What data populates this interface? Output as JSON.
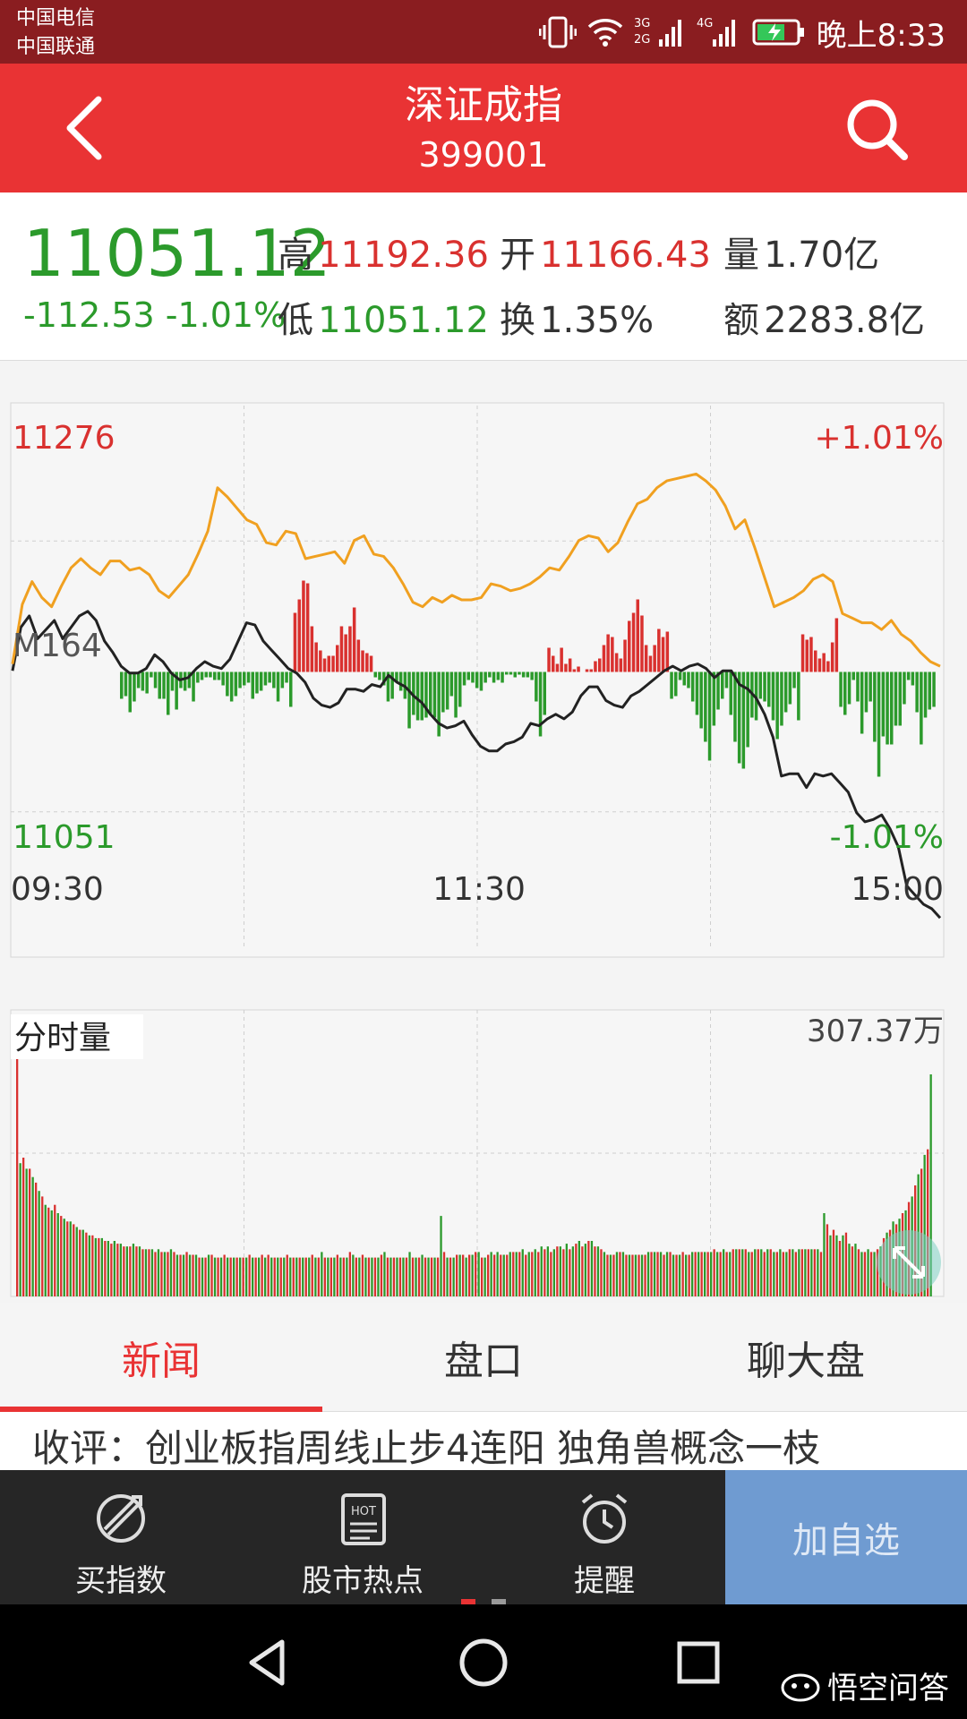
{
  "status_bar": {
    "carrier_1": "中国电信",
    "carrier_2": "中国联通",
    "network_1": "3G",
    "network_2": "2G",
    "network_3": "4G",
    "time": "晚上8:33",
    "icons": [
      "vibrate-icon",
      "wifi-icon",
      "signal-icon",
      "signal-icon",
      "battery-charging-icon"
    ]
  },
  "header": {
    "title": "深证成指",
    "code": "399001",
    "back_icon": "chevron-left-icon",
    "search_icon": "search-icon"
  },
  "quote": {
    "price": "11051.12",
    "change": "-112.53",
    "change_pct": "-1.01%",
    "high_label": "高",
    "high": "11192.36",
    "open_label": "开",
    "open": "11166.43",
    "volume_label": "量",
    "volume": "1.70亿",
    "low_label": "低",
    "low": "11051.12",
    "turnover_label": "换",
    "turnover": "1.35%",
    "amount_label": "额",
    "amount": "2283.8亿"
  },
  "chart_data": [
    {
      "type": "line",
      "y_max_label": "11276",
      "y_min_label": "11051",
      "pct_max_label": "+1.01%",
      "pct_min_label": "-1.01%",
      "overlay_label": "M164",
      "ylim": [
        11051,
        11276
      ],
      "x_ticks": [
        "09:30",
        "11:30",
        "15:00"
      ],
      "grid": true,
      "series": [
        {
          "key": "index",
          "color": "#222222",
          "values": [
            11164,
            11183,
            11188,
            11178,
            11182,
            11186,
            11178,
            11183,
            11188,
            11190,
            11186,
            11177,
            11172,
            11166,
            11163,
            11163,
            11165,
            11171,
            11168,
            11163,
            11160,
            11161,
            11165,
            11168,
            11166,
            11165,
            11169,
            11177,
            11185,
            11184,
            11177,
            11173,
            11169,
            11165,
            11163,
            11159,
            11152,
            11149,
            11148,
            11150,
            11156,
            11156,
            11155,
            11158,
            11157,
            11162,
            11159,
            11157,
            11153,
            11150,
            11145,
            11141,
            11139,
            11140,
            11142,
            11136,
            11131,
            11129,
            11129,
            11132,
            11133,
            11135,
            11141,
            11140,
            11143,
            11145,
            11143,
            11146,
            11153,
            11157,
            11157,
            11151,
            11149,
            11148,
            11153,
            11155,
            11158,
            11161,
            11164,
            11166,
            11164,
            11166,
            11167,
            11165,
            11161,
            11164,
            11164,
            11158,
            11156,
            11152,
            11145,
            11135,
            11118,
            11119,
            11119,
            11113,
            11119,
            11118,
            11119,
            11115,
            11111,
            11102,
            11098,
            11099,
            11101,
            11095,
            11087,
            11070,
            11066,
            11062,
            11060,
            11056
          ]
        },
        {
          "key": "average",
          "color": "#f0a020",
          "values": [
            11167,
            11193,
            11203,
            11196,
            11192,
            11201,
            11209,
            11213,
            11209,
            11206,
            11212,
            11212,
            11208,
            11209,
            11206,
            11199,
            11196,
            11201,
            11206,
            11215,
            11225,
            11244,
            11240,
            11235,
            11230,
            11228,
            11220,
            11219,
            11225,
            11224,
            11213,
            11214,
            11215,
            11216,
            11211,
            11221,
            11223,
            11215,
            11214,
            11209,
            11202,
            11194,
            11192,
            11196,
            11194,
            11197,
            11195,
            11195,
            11196,
            11202,
            11201,
            11199,
            11200,
            11202,
            11205,
            11209,
            11208,
            11214,
            11221,
            11223,
            11222,
            11216,
            11220,
            11229,
            11237,
            11239,
            11244,
            11247,
            11248,
            11249,
            11250,
            11247,
            11243,
            11236,
            11226,
            11230,
            11218,
            11205,
            11192,
            11194,
            11196,
            11199,
            11204,
            11206,
            11203,
            11189,
            11187,
            11185,
            11185,
            11182,
            11186,
            11180,
            11177,
            11172,
            11168,
            11166
          ]
        }
      ],
      "volume_bars": [
        10,
        9,
        15,
        11,
        6,
        7,
        8,
        2,
        6,
        10,
        10,
        16,
        7,
        14,
        6,
        7,
        6,
        11,
        4,
        3,
        2,
        2,
        3,
        3,
        5,
        9,
        11,
        9,
        6,
        5,
        4,
        10,
        8,
        7,
        5,
        4,
        6,
        11,
        6,
        4,
        13,
        22,
        27,
        34,
        33,
        17,
        11,
        8,
        5,
        6,
        6,
        10,
        17,
        14,
        17,
        24,
        12,
        8,
        7,
        6,
        2,
        3,
        5,
        11,
        10,
        4,
        7,
        10,
        21,
        16,
        18,
        18,
        17,
        16,
        17,
        24,
        15,
        14,
        9,
        17,
        13,
        5,
        3,
        4,
        6,
        7,
        4,
        2,
        4,
        3,
        4,
        1,
        1,
        2,
        1,
        2,
        2,
        3,
        11,
        24,
        16,
        9,
        6,
        3,
        9,
        3,
        5,
        1,
        2,
        0,
        1,
        1,
        4,
        5,
        10,
        14,
        13,
        7,
        5,
        12,
        19,
        22,
        27,
        21,
        10,
        6,
        10,
        16,
        13,
        15,
        10,
        9,
        3,
        5,
        6,
        11,
        16,
        21,
        26,
        33,
        20,
        14,
        10,
        6,
        16,
        26,
        34,
        36,
        28,
        17,
        18,
        10,
        11,
        13,
        18,
        25,
        20,
        15,
        12,
        6,
        18,
        14,
        12,
        13,
        8,
        5,
        7,
        4,
        11,
        20,
        13,
        16,
        12,
        3,
        11,
        23,
        15,
        11,
        26,
        39,
        24,
        27,
        27,
        20,
        20,
        12,
        3,
        5,
        15,
        27,
        17,
        14,
        13
      ],
      "volume_bar_colors": "alternating red/green per minute"
    },
    {
      "type": "bar",
      "title": "分时量",
      "max_label": "307.37万",
      "values": [
        100,
        48,
        50,
        46,
        46,
        43,
        41,
        38,
        36,
        33,
        32,
        31,
        33,
        30,
        29,
        28,
        27,
        27,
        26,
        25,
        24,
        24,
        23,
        22,
        22,
        21,
        21,
        21,
        20,
        20,
        19,
        20,
        19,
        19,
        18,
        18,
        18,
        19,
        18,
        18,
        17,
        17,
        17,
        17,
        16,
        17,
        16,
        16,
        16,
        17,
        16,
        15,
        15,
        15,
        16,
        15,
        15,
        15,
        14,
        14,
        14,
        15,
        15,
        14,
        14,
        14,
        15,
        14,
        14,
        14,
        14,
        14,
        14,
        14,
        15,
        14,
        14,
        14,
        15,
        14,
        15,
        14,
        14,
        14,
        14,
        14,
        15,
        14,
        14,
        14,
        14,
        14,
        14,
        14,
        15,
        14,
        14,
        16,
        14,
        14,
        14,
        14,
        15,
        14,
        14,
        14,
        16,
        15,
        14,
        14,
        15,
        14,
        14,
        14,
        14,
        14,
        15,
        16,
        14,
        14,
        14,
        14,
        14,
        14,
        14,
        16,
        14,
        14,
        14,
        15,
        14,
        14,
        14,
        14,
        14,
        29,
        16,
        14,
        14,
        14,
        15,
        15,
        15,
        14,
        15,
        15,
        16,
        16,
        14,
        14,
        15,
        16,
        15,
        16,
        15,
        15,
        15,
        16,
        16,
        16,
        16,
        17,
        15,
        16,
        16,
        17,
        16,
        18,
        17,
        18,
        16,
        17,
        18,
        18,
        17,
        19,
        17,
        18,
        19,
        20,
        18,
        19,
        20,
        20,
        18,
        18,
        17,
        16,
        15,
        15,
        15,
        16,
        16,
        16,
        15,
        15,
        15,
        15,
        15,
        15,
        15,
        16,
        16,
        16,
        16,
        16,
        15,
        16,
        16,
        15,
        15,
        15,
        16,
        15,
        15,
        16,
        16,
        16,
        16,
        16,
        16,
        16,
        17,
        16,
        16,
        17,
        16,
        16,
        17,
        17,
        17,
        17,
        17,
        16,
        16,
        17,
        17,
        17,
        16,
        17,
        17,
        16,
        16,
        17,
        16,
        16,
        17,
        17,
        16,
        17,
        17,
        17,
        17,
        17,
        17,
        17,
        16,
        30,
        26,
        22,
        24,
        22,
        20,
        22,
        23,
        19,
        18,
        19,
        17,
        16,
        16,
        17,
        16,
        16,
        17,
        18,
        21,
        23,
        24,
        27,
        26,
        28,
        30,
        31,
        34,
        36,
        40,
        44,
        46,
        51,
        53,
        80
      ],
      "bar_colors": "alternating red/green"
    }
  ],
  "tabs": [
    {
      "label": "新闻",
      "active": true
    },
    {
      "label": "盘口",
      "active": false
    },
    {
      "label": "聊大盘",
      "active": false
    }
  ],
  "news": {
    "headline": "收评：创业板指周线止步4连阳 独角兽概念一枝"
  },
  "action_bar": {
    "items": [
      {
        "label": "买指数",
        "icon": "buy-index-icon"
      },
      {
        "label": "股市热点",
        "icon": "hot-news-icon"
      },
      {
        "label": "提醒",
        "icon": "alarm-clock-icon"
      }
    ],
    "add_label": "加自选",
    "hot_badge": "HOT"
  },
  "watermark": "悟空问答",
  "colors": {
    "up": "#d9312f",
    "down": "#2b9a2b",
    "header": "#e93334",
    "statusbar": "#8a1d20",
    "add_button": "#6f9bd1"
  }
}
